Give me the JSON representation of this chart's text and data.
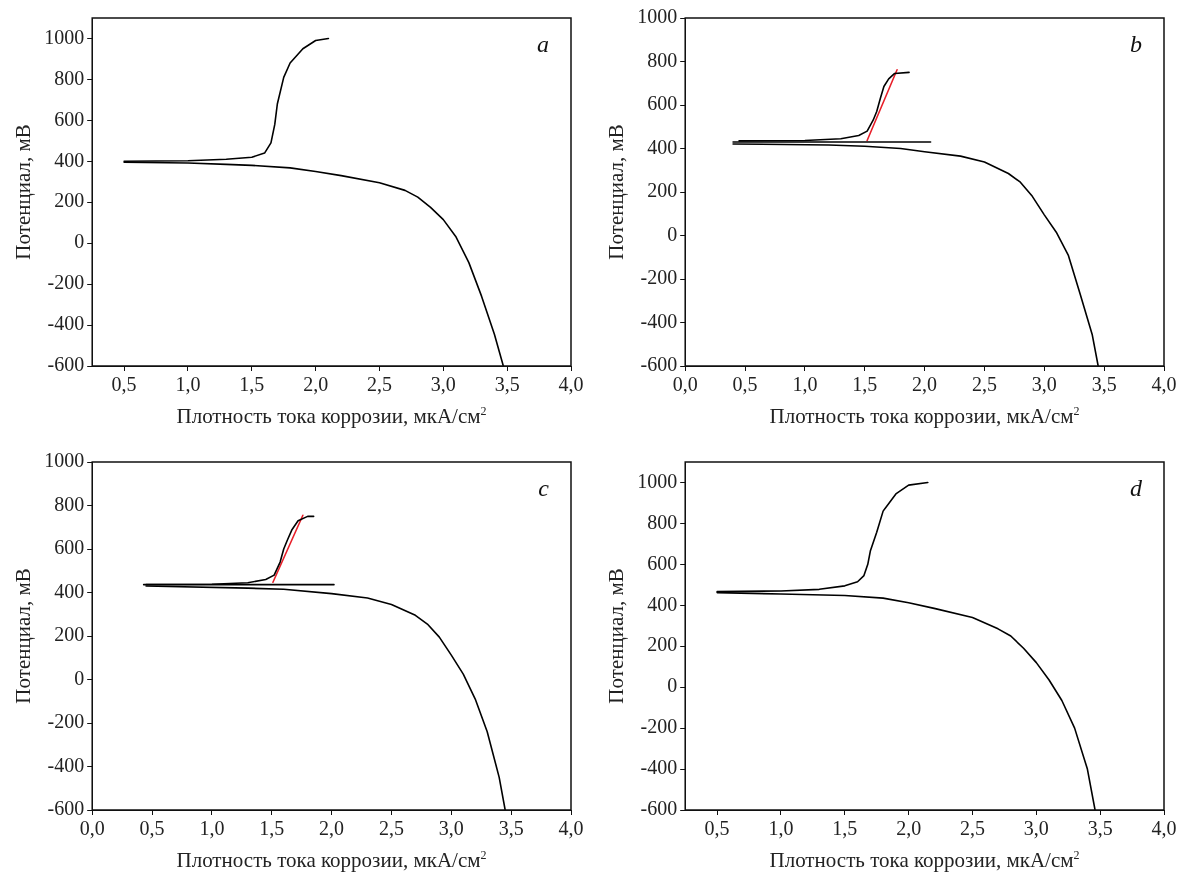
{
  "chart_data": [
    {
      "type": "line",
      "annotations": [
        "a"
      ],
      "xlabel": "Плотность тока коррозии, мкА/см$^{2}$",
      "ylabel": "Потенциал, мВ",
      "xlim": [
        0.25,
        4.0
      ],
      "ylim": [
        -600,
        1100
      ],
      "xticks": [
        {
          "value": 0.5,
          "label": "0,5"
        },
        {
          "value": 1.0,
          "label": "1,0"
        },
        {
          "value": 1.5,
          "label": "1,5"
        },
        {
          "value": 2.0,
          "label": "2,0"
        },
        {
          "value": 2.5,
          "label": "2,5"
        },
        {
          "value": 3.0,
          "label": "3,0"
        },
        {
          "value": 3.5,
          "label": "3,5"
        },
        {
          "value": 4.0,
          "label": "4,0"
        }
      ],
      "yticks": [
        -600,
        -400,
        -200,
        0,
        200,
        400,
        600,
        800,
        1000
      ],
      "grid": false,
      "legend": false,
      "marker": "none",
      "line_style": "solid",
      "series": [
        {
          "color": "#000000",
          "x": [
            0.5,
            1.0,
            1.3,
            1.5,
            1.8,
            2.0,
            2.2,
            2.5,
            2.7,
            2.8,
            2.9,
            3.0,
            3.1,
            3.2,
            3.3,
            3.4,
            3.47
          ],
          "values": [
            395,
            392,
            385,
            380,
            368,
            350,
            330,
            295,
            258,
            225,
            175,
            115,
            30,
            -95,
            -260,
            -445,
            -600
          ]
        },
        {
          "color": "#000000",
          "x": [
            0.5,
            1.0,
            1.3,
            1.5,
            1.6,
            1.65,
            1.68,
            1.7,
            1.75,
            1.8,
            1.9,
            2.0,
            2.1
          ],
          "values": [
            400,
            403,
            410,
            420,
            440,
            490,
            580,
            680,
            810,
            880,
            950,
            990,
            1000
          ]
        }
      ]
    },
    {
      "type": "line",
      "annotations": [
        "b"
      ],
      "xlabel": "Плотность тока коррозии, мкА/см$^{2}$",
      "ylabel": "Потенциал, мВ",
      "xlim": [
        0.0,
        4.0
      ],
      "ylim": [
        -600,
        1000
      ],
      "xticks": [
        {
          "value": 0.0,
          "label": "0,0"
        },
        {
          "value": 0.5,
          "label": "0,5"
        },
        {
          "value": 1.0,
          "label": "1,0"
        },
        {
          "value": 1.5,
          "label": "1,5"
        },
        {
          "value": 2.0,
          "label": "2,0"
        },
        {
          "value": 2.5,
          "label": "2,5"
        },
        {
          "value": 3.0,
          "label": "3,0"
        },
        {
          "value": 3.5,
          "label": "3,5"
        },
        {
          "value": 4.0,
          "label": "4,0"
        }
      ],
      "yticks": [
        -600,
        -400,
        -200,
        0,
        200,
        400,
        600,
        800,
        1000
      ],
      "grid": false,
      "legend": false,
      "marker": "none",
      "line_style": "solid",
      "series": [
        {
          "color": "#000000",
          "x": [
            0.4,
            1.2,
            1.5,
            1.8,
            2.0,
            2.3,
            2.5,
            2.7,
            2.8,
            2.9,
            3.0,
            3.1,
            3.2,
            3.3,
            3.4,
            3.45
          ],
          "values": [
            421,
            416,
            410,
            400,
            385,
            365,
            338,
            285,
            245,
            180,
            95,
            15,
            -90,
            -270,
            -455,
            -600
          ]
        },
        {
          "color": "#000000",
          "x": [
            0.45,
            1.0,
            1.3,
            1.45,
            1.52,
            1.57,
            1.6,
            1.63,
            1.66,
            1.7,
            1.75,
            1.87
          ],
          "values": [
            435,
            437,
            445,
            460,
            480,
            530,
            570,
            630,
            685,
            720,
            745,
            750
          ]
        },
        {
          "color": "#000000",
          "x": [
            0.4,
            2.05
          ],
          "values": [
            430,
            430
          ]
        },
        {
          "color": "#e8202a",
          "x": [
            1.52,
            1.77
          ],
          "values": [
            437,
            762
          ]
        }
      ]
    },
    {
      "type": "line",
      "annotations": [
        "c"
      ],
      "xlabel": "Плотность тока коррозии, мкА/см$^{2}$",
      "ylabel": "Потенциал, мВ",
      "xlim": [
        0.0,
        4.0
      ],
      "ylim": [
        -600,
        1000
      ],
      "xticks": [
        {
          "value": 0.0,
          "label": "0,0"
        },
        {
          "value": 0.5,
          "label": "0,5"
        },
        {
          "value": 1.0,
          "label": "1,0"
        },
        {
          "value": 1.5,
          "label": "1,5"
        },
        {
          "value": 2.0,
          "label": "2,0"
        },
        {
          "value": 2.5,
          "label": "2,5"
        },
        {
          "value": 3.0,
          "label": "3,0"
        },
        {
          "value": 3.5,
          "label": "3,5"
        },
        {
          "value": 4.0,
          "label": "4,0"
        }
      ],
      "yticks": [
        -600,
        -400,
        -200,
        0,
        200,
        400,
        600,
        800,
        1000
      ],
      "grid": false,
      "legend": false,
      "marker": "none",
      "line_style": "solid",
      "series": [
        {
          "color": "#000000",
          "x": [
            0.45,
            1.3,
            1.6,
            2.0,
            2.3,
            2.5,
            2.7,
            2.8,
            2.9,
            3.0,
            3.1,
            3.2,
            3.3,
            3.4,
            3.45
          ],
          "values": [
            430,
            420,
            415,
            395,
            375,
            345,
            295,
            255,
            195,
            112,
            25,
            -90,
            -240,
            -450,
            -600
          ]
        },
        {
          "color": "#000000",
          "x": [
            0.45,
            1.0,
            1.3,
            1.45,
            1.52,
            1.57,
            1.6,
            1.63,
            1.67,
            1.72,
            1.8,
            1.85
          ],
          "values": [
            437,
            438,
            445,
            460,
            480,
            540,
            600,
            640,
            690,
            730,
            750,
            750
          ]
        },
        {
          "color": "#000000",
          "x": [
            0.43,
            2.02
          ],
          "values": [
            436,
            436
          ]
        },
        {
          "color": "#e8202a",
          "x": [
            1.51,
            1.76
          ],
          "values": [
            447,
            755
          ]
        }
      ]
    },
    {
      "type": "line",
      "annotations": [
        "d"
      ],
      "xlabel": "Плотность тока коррозии, мкА/см$^{2}$",
      "ylabel": "Потенциал, мВ",
      "xlim": [
        0.25,
        4.0
      ],
      "ylim": [
        -600,
        1100
      ],
      "xticks": [
        {
          "value": 0.5,
          "label": "0,5"
        },
        {
          "value": 1.0,
          "label": "1,0"
        },
        {
          "value": 1.5,
          "label": "1,5"
        },
        {
          "value": 2.0,
          "label": "2,0"
        },
        {
          "value": 2.5,
          "label": "2,5"
        },
        {
          "value": 3.0,
          "label": "3,0"
        },
        {
          "value": 3.5,
          "label": "3,5"
        },
        {
          "value": 4.0,
          "label": "4,0"
        }
      ],
      "yticks": [
        -600,
        -400,
        -200,
        0,
        200,
        400,
        600,
        800,
        1000
      ],
      "grid": false,
      "legend": false,
      "marker": "none",
      "line_style": "solid",
      "series": [
        {
          "color": "#000000",
          "x": [
            0.5,
            1.0,
            1.5,
            1.8,
            2.0,
            2.2,
            2.5,
            2.7,
            2.8,
            2.9,
            3.0,
            3.1,
            3.2,
            3.3,
            3.4,
            3.46
          ],
          "values": [
            462,
            455,
            448,
            435,
            412,
            385,
            340,
            285,
            250,
            190,
            120,
            35,
            -65,
            -200,
            -400,
            -600
          ]
        },
        {
          "color": "#000000",
          "x": [
            0.5,
            1.0,
            1.3,
            1.5,
            1.6,
            1.65,
            1.68,
            1.7,
            1.75,
            1.8,
            1.9,
            2.0,
            2.15
          ],
          "values": [
            467,
            470,
            478,
            495,
            515,
            545,
            600,
            665,
            757,
            860,
            944,
            987,
            1000
          ]
        }
      ]
    }
  ]
}
